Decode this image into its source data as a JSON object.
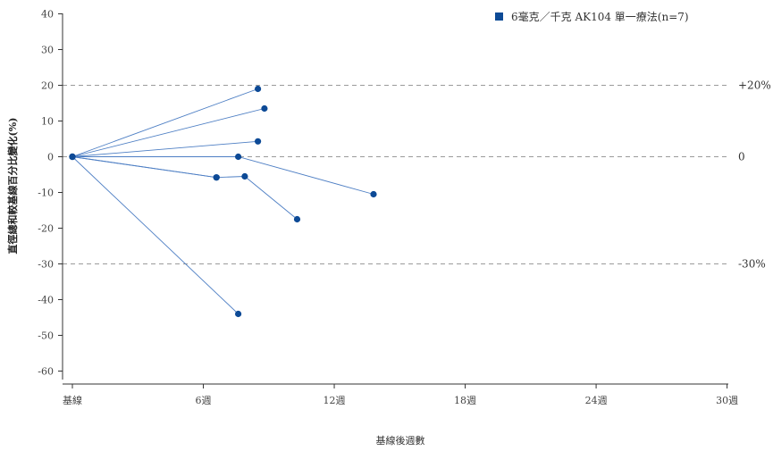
{
  "chart_data": {
    "type": "line",
    "title": "",
    "xlabel": "基線後週數",
    "ylabel": "直徑總和較基線百分比變化(%)",
    "x_ticks": [
      {
        "value": 0,
        "label": "基線"
      },
      {
        "value": 6,
        "label": "6週"
      },
      {
        "value": 12,
        "label": "12週"
      },
      {
        "value": 18,
        "label": "18週"
      },
      {
        "value": 24,
        "label": "24週"
      },
      {
        "value": 30,
        "label": "30週"
      }
    ],
    "y_ticks": [
      40,
      30,
      20,
      10,
      0,
      -10,
      -20,
      -30,
      -40,
      -50,
      -60
    ],
    "xlim": [
      -1,
      30
    ],
    "ylim": [
      -62,
      42
    ],
    "grid": false,
    "legend_position": "top-right",
    "legend": "6毫克／千克 AK104 單一療法(n=7)",
    "reference_lines": [
      {
        "value": 20,
        "label": "+20%"
      },
      {
        "value": 0,
        "label": "0"
      },
      {
        "value": -30,
        "label": "-30%"
      }
    ],
    "series": [
      {
        "x": [
          0,
          8.5
        ],
        "y": [
          0,
          19
        ]
      },
      {
        "x": [
          0,
          8.8
        ],
        "y": [
          0,
          13.5
        ]
      },
      {
        "x": [
          0,
          8.5
        ],
        "y": [
          0,
          4.3
        ]
      },
      {
        "x": [
          0,
          7.6,
          13.8
        ],
        "y": [
          0,
          0,
          -10.5
        ]
      },
      {
        "x": [
          0,
          6.6
        ],
        "y": [
          0,
          -5.8
        ]
      },
      {
        "x": [
          0,
          6.6,
          7.9,
          10.3
        ],
        "y": [
          0,
          -5.8,
          -5.5,
          -17.5
        ]
      },
      {
        "x": [
          0,
          7.6
        ],
        "y": [
          0,
          -44
        ]
      }
    ]
  },
  "colors": {
    "marker": "#0d4a96",
    "line": "#4e7fc4",
    "reference": "#9a9a9a",
    "axis": "#333333"
  }
}
